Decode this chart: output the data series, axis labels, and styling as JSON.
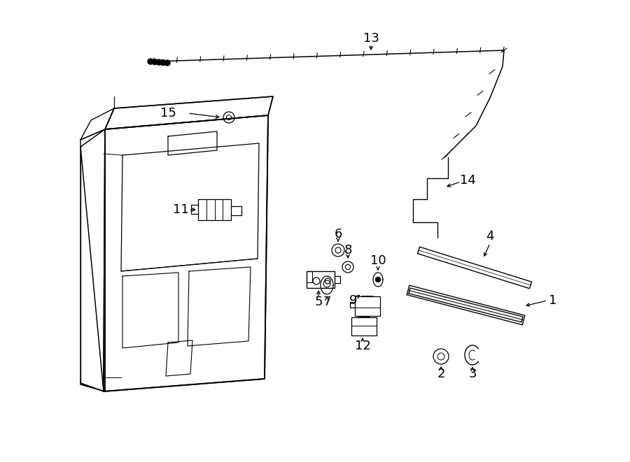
{
  "bg_color": "#ffffff",
  "line_color": "#000000",
  "fig_width": 9.0,
  "fig_height": 6.61,
  "label_fontsize": 13
}
